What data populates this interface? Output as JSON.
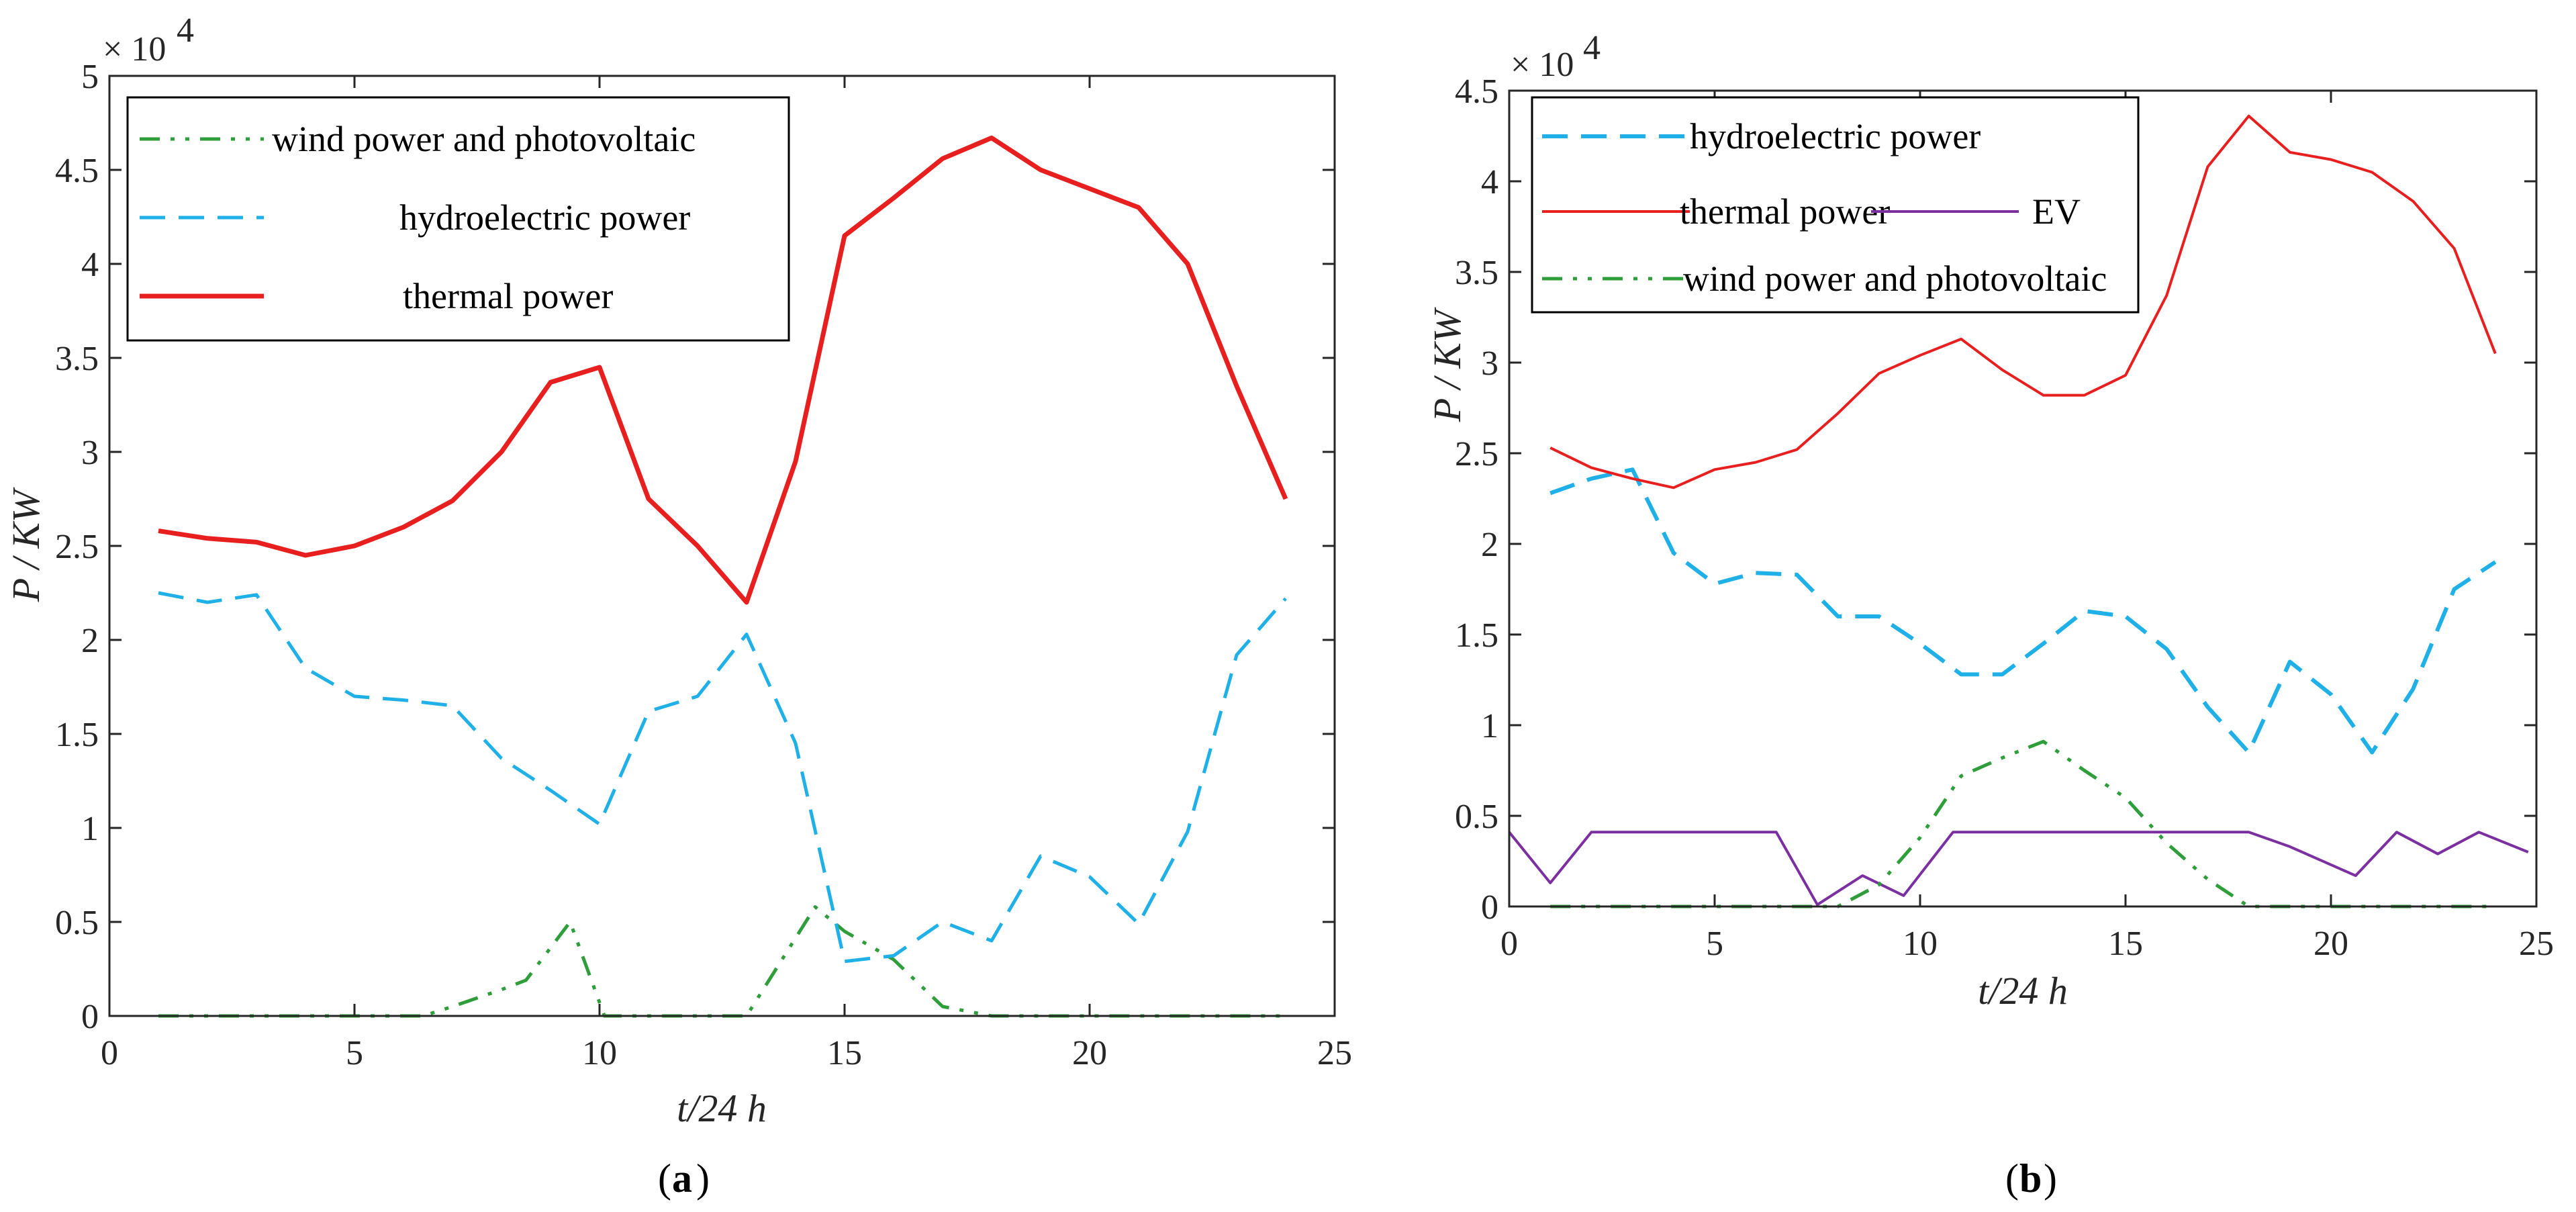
{
  "chart_data": [
    {
      "type": "line",
      "title": "",
      "caption_letter": "a",
      "xlabel": "t/24 h",
      "ylabel": "P / KW",
      "exponent_label": "× 10",
      "exponent_power": "4",
      "xlim": [
        0,
        25
      ],
      "ylim": [
        0,
        5
      ],
      "xticks": [
        "0",
        "5",
        "10",
        "15",
        "20",
        "25"
      ],
      "yticks": [
        "0",
        "0.5",
        "1",
        "1.5",
        "2",
        "2.5",
        "3",
        "3.5",
        "4",
        "4.5",
        "5"
      ],
      "legend_position": "top-left",
      "series": [
        {
          "name": "wind power and photovoltaic",
          "color": "#2e9e3a",
          "style": "dashdotdot",
          "x": [
            1,
            2,
            3,
            4,
            5,
            6,
            6.4,
            7,
            8,
            8.5,
            9.4,
            10.1,
            11,
            12,
            13,
            14.4,
            15,
            16,
            17,
            18,
            19,
            20,
            21,
            22,
            23,
            24
          ],
          "values": [
            0,
            0,
            0,
            0,
            0,
            0,
            0,
            0.05,
            0.14,
            0.19,
            0.5,
            0,
            0,
            0,
            0,
            0.58,
            0.45,
            0.3,
            0.05,
            0,
            0,
            0,
            0,
            0,
            0,
            0
          ]
        },
        {
          "name": "hydroelectric power",
          "color": "#1fb0e8",
          "style": "dashed",
          "x": [
            1,
            2,
            3,
            4,
            5,
            6,
            7,
            8,
            9,
            10,
            11,
            12,
            13,
            14,
            15,
            16,
            17,
            18,
            19,
            20,
            21,
            22,
            23,
            24
          ],
          "values": [
            2.25,
            2.2,
            2.24,
            1.85,
            1.7,
            1.68,
            1.65,
            1.37,
            1.2,
            1.02,
            1.62,
            1.7,
            2.03,
            1.45,
            0.29,
            0.32,
            0.5,
            0.4,
            0.85,
            0.74,
            0.49,
            0.98,
            1.92,
            2.22
          ]
        },
        {
          "name": "thermal power",
          "color": "#e81f1f",
          "style": "solid",
          "x": [
            1,
            2,
            3,
            4,
            5,
            6,
            7,
            8,
            9,
            10,
            11,
            12,
            13,
            14,
            15,
            16,
            17,
            18,
            19,
            20,
            21,
            22,
            23,
            24
          ],
          "values": [
            2.58,
            2.54,
            2.52,
            2.45,
            2.5,
            2.6,
            2.74,
            3.0,
            3.37,
            3.45,
            2.75,
            2.5,
            2.2,
            2.95,
            4.15,
            4.35,
            4.56,
            4.67,
            4.5,
            4.4,
            4.3,
            4.0,
            3.35,
            2.75
          ]
        }
      ]
    },
    {
      "type": "line",
      "title": "",
      "caption_letter": "b",
      "xlabel": "t/24 h",
      "ylabel": "P / KW",
      "exponent_label": "× 10",
      "exponent_power": "4",
      "xlim": [
        0,
        25
      ],
      "ylim": [
        0,
        4.5
      ],
      "xticks": [
        "0",
        "5",
        "10",
        "15",
        "20",
        "25"
      ],
      "yticks": [
        "0",
        "0.5",
        "1",
        "1.5",
        "2",
        "2.5",
        "3",
        "3.5",
        "4",
        "4.5"
      ],
      "legend_position": "top-left",
      "series": [
        {
          "name": "hydroelectric power",
          "color": "#1fb0e8",
          "style": "dashed",
          "x": [
            1,
            2,
            3,
            4,
            5,
            6,
            7,
            8,
            9,
            10,
            11,
            12,
            13,
            14,
            15,
            16,
            17,
            18,
            19,
            20,
            21,
            22,
            23,
            24
          ],
          "values": [
            2.28,
            2.36,
            2.41,
            1.95,
            1.78,
            1.84,
            1.83,
            1.6,
            1.6,
            1.45,
            1.28,
            1.28,
            1.45,
            1.63,
            1.6,
            1.42,
            1.1,
            0.85,
            1.35,
            1.17,
            0.85,
            1.2,
            1.75,
            1.9
          ]
        },
        {
          "name": "thermal power",
          "color": "#e81f1f",
          "style": "solid",
          "x": [
            1,
            2,
            3,
            4,
            5,
            6,
            7,
            8,
            9,
            10,
            11,
            12,
            13,
            14,
            15,
            16,
            17,
            18,
            19,
            20,
            21,
            22,
            23,
            24
          ],
          "values": [
            2.53,
            2.42,
            2.36,
            2.31,
            2.41,
            2.45,
            2.52,
            2.72,
            2.94,
            3.04,
            3.13,
            2.96,
            2.82,
            2.82,
            2.93,
            3.37,
            4.08,
            4.36,
            4.16,
            4.12,
            4.05,
            3.89,
            3.63,
            3.05
          ]
        },
        {
          "name": "EV",
          "color": "#7b2fa0",
          "style": "solid",
          "x": [
            0,
            1,
            2,
            3,
            4,
            5,
            6,
            6.5,
            7.5,
            8.6,
            9.6,
            10.8,
            13,
            15,
            18,
            19,
            20.6,
            21.6,
            22.6,
            23.6,
            24.8
          ],
          "values": [
            0.41,
            0.13,
            0.41,
            0.41,
            0.41,
            0.41,
            0.41,
            0.41,
            0.01,
            0.17,
            0.06,
            0.41,
            0.41,
            0.41,
            0.41,
            0.33,
            0.17,
            0.41,
            0.29,
            0.41,
            0.3
          ]
        },
        {
          "name": "wind power and photovoltaic",
          "color": "#2e9e3a",
          "style": "dashdotdot",
          "x": [
            1,
            2,
            3,
            4,
            5,
            6,
            7,
            8,
            9,
            10,
            11,
            12,
            13,
            14,
            15,
            16,
            17,
            18,
            19,
            20,
            21,
            22,
            23,
            24
          ],
          "values": [
            0,
            0,
            0,
            0,
            0,
            0,
            0,
            0,
            0.12,
            0.38,
            0.72,
            0.82,
            0.91,
            0.75,
            0.6,
            0.35,
            0.15,
            0,
            0,
            0,
            0,
            0,
            0,
            0
          ]
        }
      ]
    }
  ]
}
